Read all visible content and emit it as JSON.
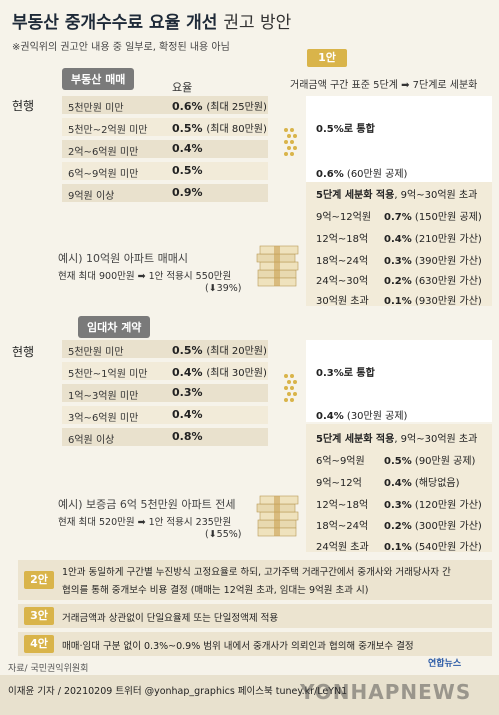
{
  "title_bold": "부동산 중개수수료 요율 개선",
  "title_light": "권고 방안",
  "subnote": "※권익위의 권고안 내용 중 일부로, 확정된 내용 아님",
  "rate_header": "요율",
  "current_label": "현행",
  "chart_data": [
    {
      "type": "table",
      "title": "부동산 매매",
      "current": [
        {
          "range": "5천만원 미만",
          "rate": "0.6%",
          "cap": "(최대 25만원)"
        },
        {
          "range": "5천만~2억원 미만",
          "rate": "0.5%",
          "cap": "(최대 80만원)"
        },
        {
          "range": "2억~6억원 미만",
          "rate": "0.4%",
          "cap": ""
        },
        {
          "range": "6억~9억원 미만",
          "rate": "0.5%",
          "cap": ""
        },
        {
          "range": "9억원 이상",
          "rate": "0.9%",
          "cap": ""
        }
      ],
      "plan1": {
        "merge": "0.5%로 통합",
        "rate06": "0.6%",
        "rate06_note": "(60만원 공제)",
        "detail_head": "5단계 세분화 적용",
        "detail_head_note": ", 9억~30억원 초과",
        "tiers": [
          {
            "range": "9억~12억원",
            "rate": "0.7%",
            "note": "(150만원 공제)"
          },
          {
            "range": "12억~18억",
            "rate": "0.4%",
            "note": "(210만원 가산)"
          },
          {
            "range": "18억~24억",
            "rate": "0.3%",
            "note": "(390만원 가산)"
          },
          {
            "range": "24억~30억",
            "rate": "0.2%",
            "note": "(630만원 가산)"
          },
          {
            "range": "30억원 초과",
            "rate": "0.1%",
            "note": "(930만원 가산)"
          }
        ]
      },
      "example": {
        "line1": "예시) 10억원 아파트 매매시",
        "line2": "현재 최대 900만원 ➡ 1안 적용시 550만원",
        "line3": "(⬇39%)"
      }
    },
    {
      "type": "table",
      "title": "임대차 계약",
      "current": [
        {
          "range": "5천만원 미만",
          "rate": "0.5%",
          "cap": "(최대 20만원)"
        },
        {
          "range": "5천만~1억원 미만",
          "rate": "0.4%",
          "cap": "(최대 30만원)"
        },
        {
          "range": "1억~3억원 미만",
          "rate": "0.3%",
          "cap": ""
        },
        {
          "range": "3억~6억원 미만",
          "rate": "0.4%",
          "cap": ""
        },
        {
          "range": "6억원 이상",
          "rate": "0.8%",
          "cap": ""
        }
      ],
      "plan1": {
        "merge": "0.3%로 통합",
        "rate04": "0.4%",
        "rate04_note": "(30만원 공제)",
        "detail_head": "5단계 세분화 적용",
        "detail_head_note": ", 9억~30억원 초과",
        "tiers": [
          {
            "range": "6억~9억원",
            "rate": "0.5%",
            "note": "(90만원 공제)"
          },
          {
            "range": "9억~12억",
            "rate": "0.4%",
            "note": "(해당없음)"
          },
          {
            "range": "12억~18억",
            "rate": "0.3%",
            "note": "(120만원 가산)"
          },
          {
            "range": "18억~24억",
            "rate": "0.2%",
            "note": "(300만원 가산)"
          },
          {
            "range": "24억원 초과",
            "rate": "0.1%",
            "note": "(540만원 가산)"
          }
        ]
      },
      "example": {
        "line1": "예시) 보증금 6억 5천만원 아파트 전세",
        "line2": "현재 최대 520만원 ➡ 1안 적용시 235만원",
        "line3": "(⬇55%)"
      }
    }
  ],
  "plan1": {
    "badge": "1안",
    "desc": "거래금액 구간 표준 5단계 ➡ 7단계로 세분화"
  },
  "plans": [
    {
      "badge": "2안",
      "text1": "1안과 동일하게 구간별 누진방식 고정요율로 하되, 고가주택 거래구간에서 중개사와 거래당사자 간",
      "text2": "협의를 통해 중개보수 비용 결정 (매매는 12억원 초과, 임대는 9억원 초과 시)"
    },
    {
      "badge": "3안",
      "text1": "거래금액과 상관없이 단일요율제 또는 단일정액제 적용",
      "text2": ""
    },
    {
      "badge": "4안",
      "text1": "매매·임대 구분 없이 0.3%~0.9% 범위 내에서 중개사가 의뢰인과 협의해 중개보수 결정",
      "text2": ""
    }
  ],
  "source": "자료/ 국민권익위원회",
  "credit": "이재윤 기자 / 20210209  트위터 @yonhap_graphics  페이스북 tuney.kr/LeYN1",
  "logo": "연합뉴스",
  "watermark": "YONHAPNEWS",
  "colors": {
    "accent": "#d9b44a",
    "bar": "#e9e1cd",
    "bg": "#f6f3ea"
  }
}
